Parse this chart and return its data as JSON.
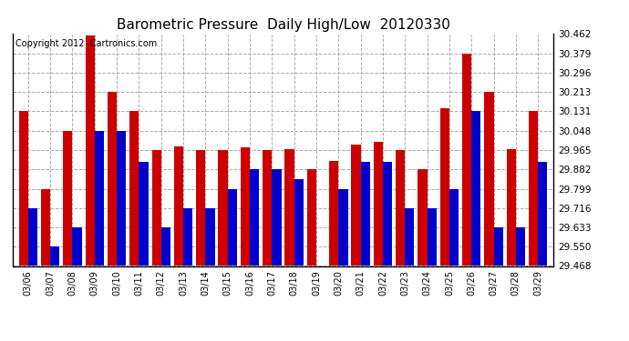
{
  "title": "Barometric Pressure  Daily High/Low  20120330",
  "copyright": "Copyright 2012  Cartronics.com",
  "dates": [
    "03/06",
    "03/07",
    "03/08",
    "03/09",
    "03/10",
    "03/11",
    "03/12",
    "03/13",
    "03/14",
    "03/15",
    "03/16",
    "03/17",
    "03/18",
    "03/19",
    "03/20",
    "03/21",
    "03/22",
    "03/23",
    "03/24",
    "03/25",
    "03/26",
    "03/27",
    "03/28",
    "03/29"
  ],
  "highs": [
    30.131,
    29.799,
    30.048,
    30.455,
    30.213,
    30.131,
    29.965,
    29.98,
    29.965,
    29.965,
    29.975,
    29.965,
    29.97,
    29.882,
    29.92,
    29.99,
    30.0,
    29.965,
    29.882,
    30.145,
    30.379,
    30.213,
    29.97,
    30.131
  ],
  "lows": [
    29.716,
    29.55,
    29.633,
    30.048,
    30.048,
    29.916,
    29.633,
    29.716,
    29.716,
    29.799,
    29.882,
    29.882,
    29.84,
    29.468,
    29.799,
    29.916,
    29.916,
    29.716,
    29.716,
    29.799,
    30.131,
    29.633,
    29.633,
    29.916
  ],
  "high_color": "#cc0000",
  "low_color": "#0000cc",
  "bg_color": "#ffffff",
  "grid_color": "#aaaaaa",
  "ymin": 29.468,
  "ymax": 30.462,
  "yticks": [
    29.468,
    29.55,
    29.633,
    29.716,
    29.799,
    29.882,
    29.965,
    30.048,
    30.131,
    30.213,
    30.296,
    30.379,
    30.462
  ],
  "title_fontsize": 11,
  "copyright_fontsize": 7,
  "figwidth": 6.9,
  "figheight": 3.75,
  "dpi": 100
}
